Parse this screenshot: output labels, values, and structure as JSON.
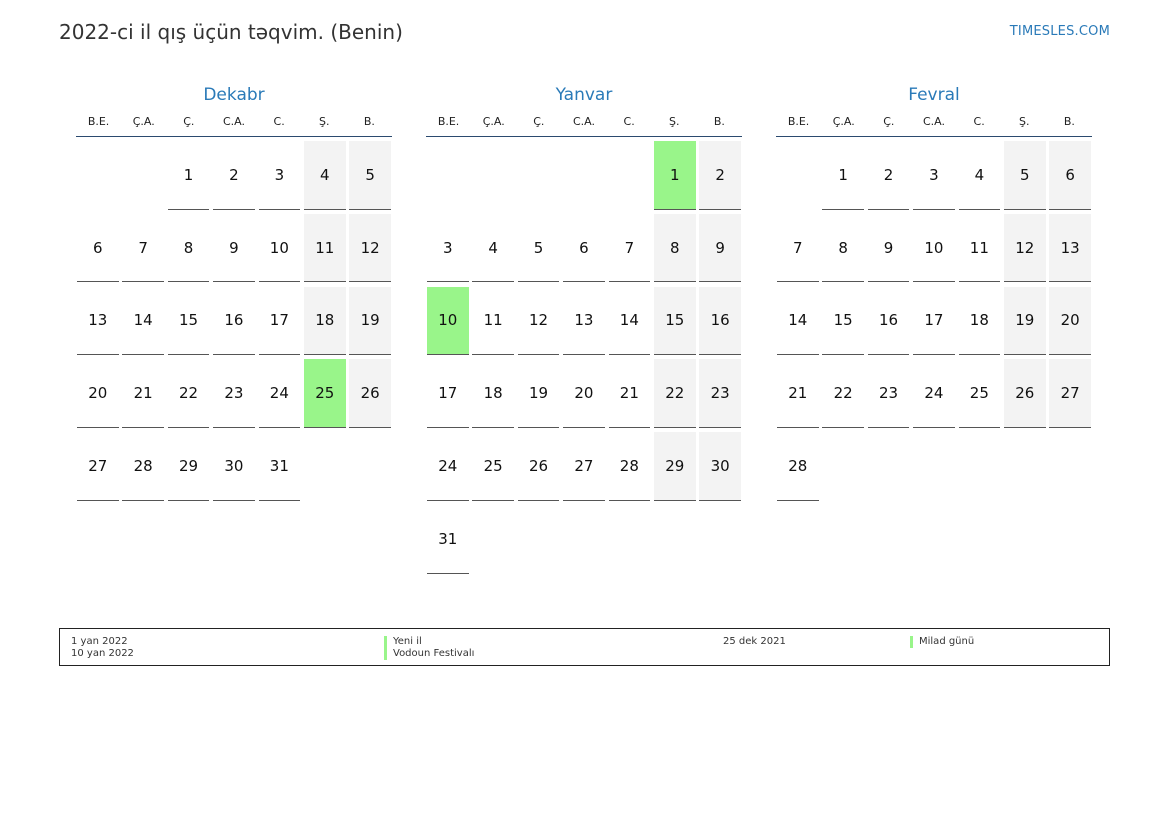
{
  "title": "2022-ci il qış üçün təqvim. (Benin)",
  "site": "TIMESLES.COM",
  "weekdays": [
    "B.E.",
    "Ç.A.",
    "Ç.",
    "C.A.",
    "C.",
    "Ş.",
    "B."
  ],
  "colors": {
    "accent": "#2a7ab8",
    "holiday": "#99f58a",
    "weekend": "#f3f3f3"
  },
  "months": [
    {
      "name": "Dekabr",
      "start_offset": 2,
      "days": 31,
      "holidays": [
        25
      ]
    },
    {
      "name": "Yanvar",
      "start_offset": 5,
      "days": 31,
      "holidays": [
        1,
        10
      ]
    },
    {
      "name": "Fevral",
      "start_offset": 1,
      "days": 28,
      "holidays": []
    }
  ],
  "legend": {
    "left_dates": [
      "1 yan 2022",
      "10 yan 2022"
    ],
    "left_names": [
      "Yeni il",
      "Vodoun Festivalı"
    ],
    "right_dates": [
      "25 dek 2021"
    ],
    "right_names": [
      "Milad günü"
    ]
  }
}
